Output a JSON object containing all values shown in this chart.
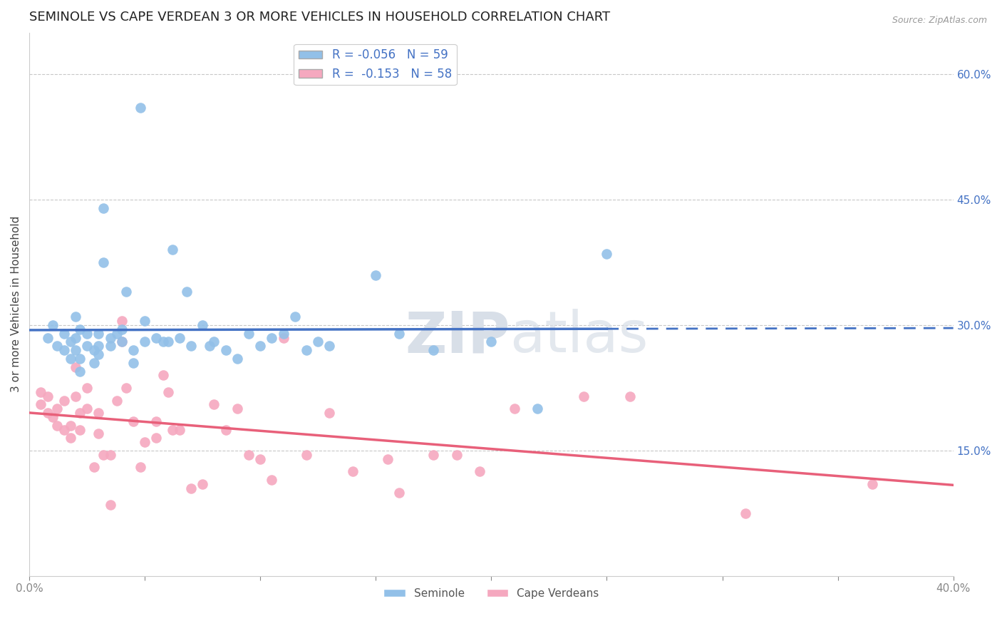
{
  "title": "SEMINOLE VS CAPE VERDEAN 3 OR MORE VEHICLES IN HOUSEHOLD CORRELATION CHART",
  "source": "Source: ZipAtlas.com",
  "ylabel": "3 or more Vehicles in Household",
  "xlim": [
    0.0,
    0.4
  ],
  "ylim": [
    0.0,
    0.65
  ],
  "xticks": [
    0.0,
    0.05,
    0.1,
    0.15,
    0.2,
    0.25,
    0.3,
    0.35,
    0.4
  ],
  "xticklabels": [
    "0.0%",
    "",
    "",
    "",
    "",
    "",
    "",
    "",
    "40.0%"
  ],
  "yticks_right": [
    0.15,
    0.3,
    0.45,
    0.6
  ],
  "ytick_right_labels": [
    "15.0%",
    "30.0%",
    "45.0%",
    "60.0%"
  ],
  "seminole_color": "#92c0e8",
  "capeverdean_color": "#f5a8bf",
  "seminole_line_color": "#4472c4",
  "capeverdean_line_color": "#e8607a",
  "watermark_color": "#d8dfe8",
  "legend_seminole_R": "R = -0.056",
  "legend_seminole_N": "N = 59",
  "legend_capeverdean_R": "R =  -0.153",
  "legend_capeverdean_N": "N = 58",
  "grid_color": "#c8c8c8",
  "background_color": "#ffffff",
  "title_color": "#222222",
  "axis_label_color": "#444444",
  "right_tick_color": "#4472c4",
  "bottom_tick_color": "#888888",
  "seminole_x": [
    0.008,
    0.01,
    0.012,
    0.015,
    0.015,
    0.018,
    0.018,
    0.02,
    0.02,
    0.02,
    0.022,
    0.022,
    0.022,
    0.025,
    0.025,
    0.028,
    0.028,
    0.03,
    0.03,
    0.03,
    0.032,
    0.032,
    0.035,
    0.035,
    0.038,
    0.04,
    0.04,
    0.042,
    0.045,
    0.045,
    0.048,
    0.05,
    0.05,
    0.055,
    0.058,
    0.06,
    0.062,
    0.065,
    0.068,
    0.07,
    0.075,
    0.078,
    0.08,
    0.085,
    0.09,
    0.095,
    0.1,
    0.105,
    0.11,
    0.115,
    0.12,
    0.125,
    0.13,
    0.15,
    0.16,
    0.175,
    0.2,
    0.22,
    0.25
  ],
  "seminole_y": [
    0.285,
    0.3,
    0.275,
    0.27,
    0.29,
    0.26,
    0.28,
    0.31,
    0.27,
    0.285,
    0.295,
    0.26,
    0.245,
    0.275,
    0.29,
    0.27,
    0.255,
    0.29,
    0.275,
    0.265,
    0.44,
    0.375,
    0.285,
    0.275,
    0.29,
    0.28,
    0.295,
    0.34,
    0.27,
    0.255,
    0.56,
    0.28,
    0.305,
    0.285,
    0.28,
    0.28,
    0.39,
    0.285,
    0.34,
    0.275,
    0.3,
    0.275,
    0.28,
    0.27,
    0.26,
    0.29,
    0.275,
    0.285,
    0.29,
    0.31,
    0.27,
    0.28,
    0.275,
    0.36,
    0.29,
    0.27,
    0.28,
    0.2,
    0.385
  ],
  "capeverdean_x": [
    0.005,
    0.005,
    0.008,
    0.008,
    0.01,
    0.012,
    0.012,
    0.015,
    0.015,
    0.018,
    0.018,
    0.02,
    0.02,
    0.022,
    0.022,
    0.025,
    0.025,
    0.028,
    0.03,
    0.03,
    0.032,
    0.035,
    0.035,
    0.038,
    0.04,
    0.04,
    0.042,
    0.045,
    0.048,
    0.05,
    0.055,
    0.055,
    0.058,
    0.06,
    0.062,
    0.065,
    0.07,
    0.075,
    0.08,
    0.085,
    0.09,
    0.095,
    0.1,
    0.105,
    0.11,
    0.12,
    0.13,
    0.14,
    0.155,
    0.16,
    0.175,
    0.185,
    0.195,
    0.21,
    0.24,
    0.26,
    0.31,
    0.365
  ],
  "capeverdean_y": [
    0.22,
    0.205,
    0.215,
    0.195,
    0.19,
    0.2,
    0.18,
    0.175,
    0.21,
    0.165,
    0.18,
    0.215,
    0.25,
    0.195,
    0.175,
    0.2,
    0.225,
    0.13,
    0.195,
    0.17,
    0.145,
    0.145,
    0.085,
    0.21,
    0.28,
    0.305,
    0.225,
    0.185,
    0.13,
    0.16,
    0.185,
    0.165,
    0.24,
    0.22,
    0.175,
    0.175,
    0.105,
    0.11,
    0.205,
    0.175,
    0.2,
    0.145,
    0.14,
    0.115,
    0.285,
    0.145,
    0.195,
    0.125,
    0.14,
    0.1,
    0.145,
    0.145,
    0.125,
    0.2,
    0.215,
    0.215,
    0.075,
    0.11
  ]
}
